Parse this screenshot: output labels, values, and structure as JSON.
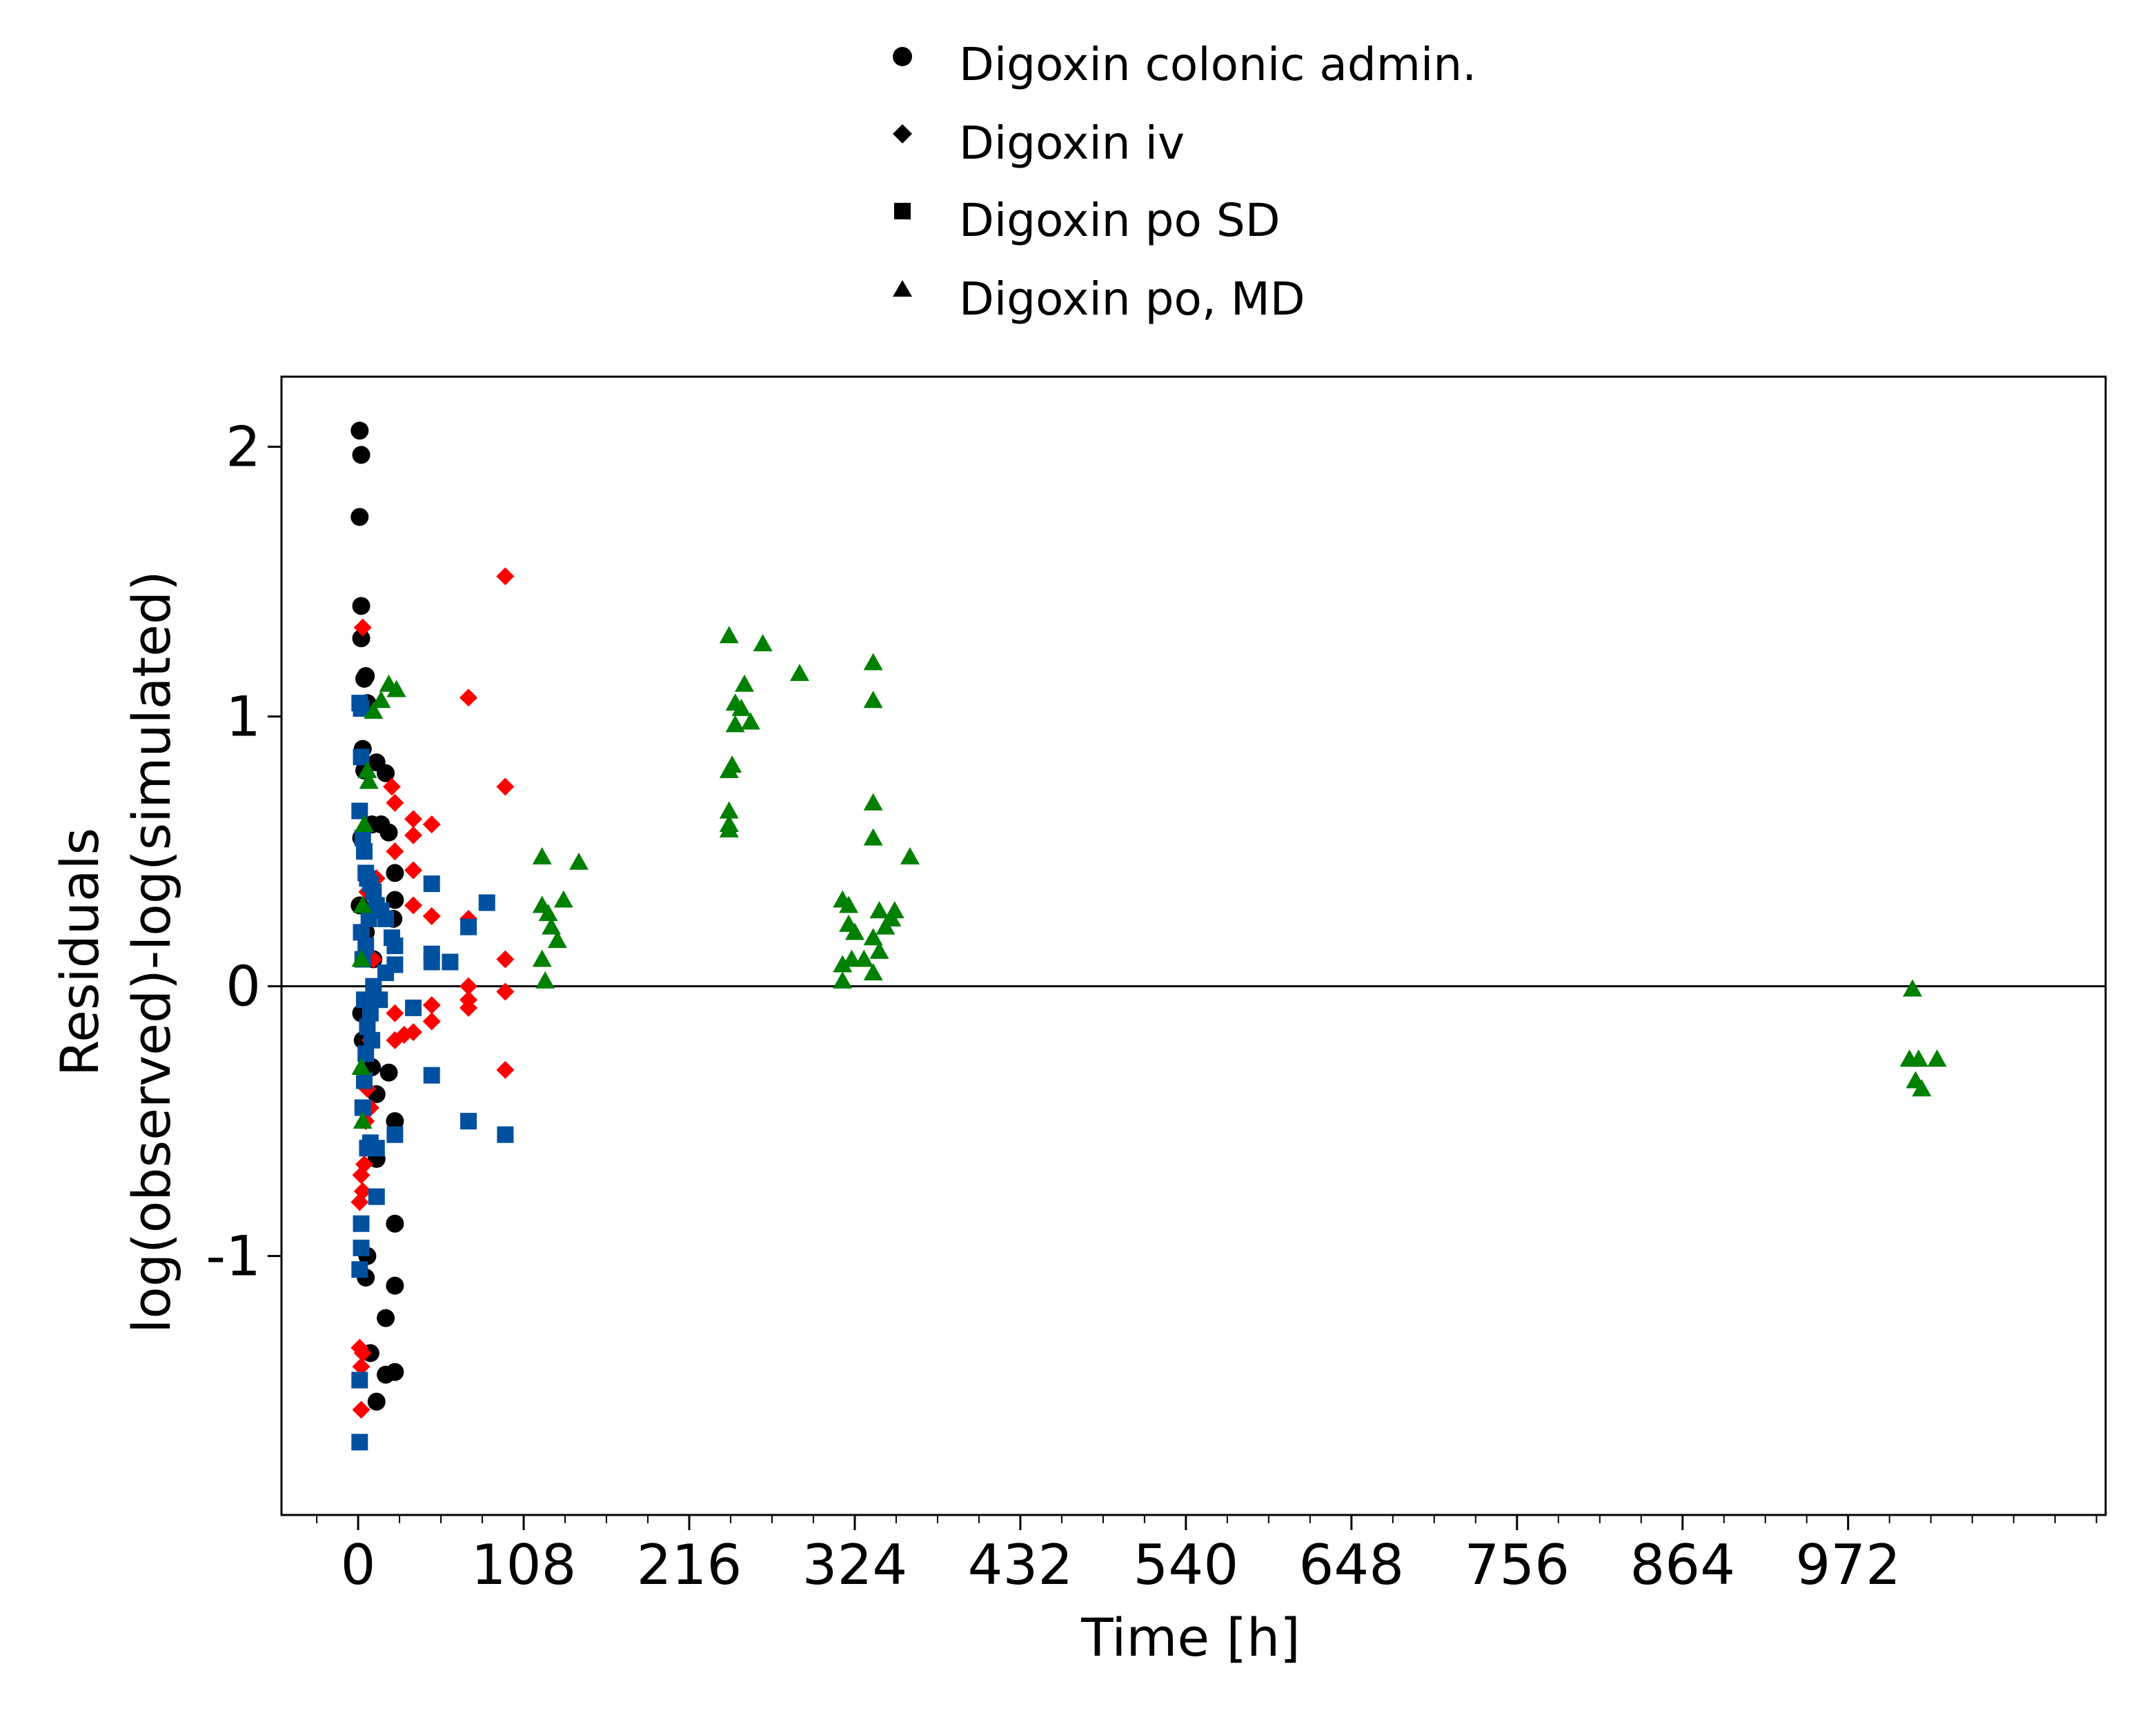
{
  "chart_data": {
    "type": "scatter",
    "title": "",
    "xlabel": "Time [h]",
    "ylabel_line1": "Residuals",
    "ylabel_line2": "log(observed)-log(simulated)",
    "xlim": [
      -50,
      1140
    ],
    "ylim": [
      -1.96,
      2.26
    ],
    "x_ticks": [
      0,
      108,
      216,
      324,
      432,
      540,
      648,
      756,
      864,
      972
    ],
    "x_tick_labels": [
      "0",
      "108",
      "216",
      "324",
      "432",
      "540",
      "648",
      "756",
      "864",
      "972"
    ],
    "y_ticks": [
      -1,
      0,
      1,
      2
    ],
    "y_tick_labels": [
      "-1",
      "0",
      "1",
      "2"
    ],
    "reference_line_y": 0,
    "grid": false,
    "legend_position": "top-center",
    "legend": [
      {
        "label": "Digoxin colonic admin.",
        "marker": "circle"
      },
      {
        "label": "Digoxin iv",
        "marker": "diamond"
      },
      {
        "label": "Digoxin po SD",
        "marker": "square"
      },
      {
        "label": "Digoxin po, MD",
        "marker": "triangle"
      }
    ],
    "series": [
      {
        "marker": "circle",
        "color": "#000000",
        "points": [
          [
            1,
            2.06
          ],
          [
            2,
            1.97
          ],
          [
            1,
            1.74
          ],
          [
            2,
            1.41
          ],
          [
            2,
            1.29
          ],
          [
            5,
            1.15
          ],
          [
            4,
            1.14
          ],
          [
            6,
            1.05
          ],
          [
            3,
            0.88
          ],
          [
            12,
            0.83
          ],
          [
            18,
            0.79
          ],
          [
            4,
            0.8
          ],
          [
            9,
            0.6
          ],
          [
            15,
            0.6
          ],
          [
            20,
            0.57
          ],
          [
            24,
            0.42
          ],
          [
            24,
            0.32
          ],
          [
            23,
            0.25
          ],
          [
            2,
            0.55
          ],
          [
            5,
            0.2
          ],
          [
            10,
            0.1
          ],
          [
            20,
            -0.32
          ],
          [
            24,
            -0.5
          ],
          [
            9,
            -0.3
          ],
          [
            12,
            -0.4
          ],
          [
            6,
            -1.0
          ],
          [
            5,
            -1.08
          ],
          [
            12,
            -0.64
          ],
          [
            24,
            -0.88
          ],
          [
            24,
            -1.11
          ],
          [
            18,
            -1.23
          ],
          [
            8,
            -1.36
          ],
          [
            12,
            -1.54
          ],
          [
            18,
            -1.44
          ],
          [
            24,
            -1.43
          ],
          [
            3,
            -0.2
          ],
          [
            1,
            0.3
          ],
          [
            2,
            -0.1
          ]
        ]
      },
      {
        "marker": "diamond",
        "color": "#ff0000",
        "points": [
          [
            96,
            1.52
          ],
          [
            72,
            1.07
          ],
          [
            96,
            0.74
          ],
          [
            3,
            1.33
          ],
          [
            22,
            0.74
          ],
          [
            24,
            0.68
          ],
          [
            36,
            0.62
          ],
          [
            48,
            0.6
          ],
          [
            36,
            0.56
          ],
          [
            24,
            0.5
          ],
          [
            72,
            0.25
          ],
          [
            48,
            0.26
          ],
          [
            36,
            0.3
          ],
          [
            36,
            0.43
          ],
          [
            96,
            0.1
          ],
          [
            72,
            0.0
          ],
          [
            96,
            -0.02
          ],
          [
            72,
            -0.05
          ],
          [
            48,
            -0.07
          ],
          [
            48,
            -0.13
          ],
          [
            36,
            -0.17
          ],
          [
            30,
            -0.18
          ],
          [
            24,
            -0.2
          ],
          [
            24,
            -0.1
          ],
          [
            96,
            -0.31
          ],
          [
            72,
            -0.08
          ],
          [
            2,
            -0.7
          ],
          [
            3,
            -0.76
          ],
          [
            1,
            -0.8
          ],
          [
            4,
            -0.66
          ],
          [
            5,
            -0.5
          ],
          [
            8,
            -0.45
          ],
          [
            1,
            -1.34
          ],
          [
            3,
            -1.36
          ],
          [
            2,
            -1.57
          ],
          [
            2,
            -1.41
          ],
          [
            6,
            -0.38
          ],
          [
            8,
            -0.2
          ],
          [
            10,
            0.1
          ],
          [
            6,
            0.35
          ],
          [
            12,
            0.4
          ]
        ]
      },
      {
        "marker": "square",
        "color": "#0050a0",
        "points": [
          [
            1,
            1.05
          ],
          [
            2,
            1.03
          ],
          [
            2,
            0.85
          ],
          [
            1,
            0.65
          ],
          [
            3,
            0.55
          ],
          [
            4,
            0.5
          ],
          [
            5,
            0.42
          ],
          [
            6,
            0.4
          ],
          [
            8,
            0.38
          ],
          [
            10,
            0.35
          ],
          [
            12,
            0.3
          ],
          [
            15,
            0.28
          ],
          [
            18,
            0.25
          ],
          [
            22,
            0.18
          ],
          [
            24,
            0.15
          ],
          [
            24,
            0.08
          ],
          [
            48,
            0.38
          ],
          [
            48,
            0.12
          ],
          [
            48,
            0.09
          ],
          [
            60,
            0.09
          ],
          [
            72,
            0.22
          ],
          [
            84,
            0.31
          ],
          [
            36,
            -0.08
          ],
          [
            48,
            -0.33
          ],
          [
            72,
            -0.5
          ],
          [
            96,
            -0.55
          ],
          [
            24,
            -0.55
          ],
          [
            12,
            -0.6
          ],
          [
            8,
            -0.58
          ],
          [
            6,
            -0.6
          ],
          [
            12,
            -0.78
          ],
          [
            2,
            -0.88
          ],
          [
            2,
            -0.97
          ],
          [
            1,
            -1.05
          ],
          [
            1,
            -1.46
          ],
          [
            1,
            -1.69
          ],
          [
            3,
            -0.45
          ],
          [
            4,
            -0.35
          ],
          [
            5,
            -0.25
          ],
          [
            6,
            -0.15
          ],
          [
            8,
            -0.1
          ],
          [
            10,
            0.0
          ],
          [
            14,
            -0.05
          ],
          [
            18,
            0.05
          ],
          [
            2,
            0.2
          ],
          [
            3,
            0.1
          ],
          [
            4,
            -0.05
          ],
          [
            5,
            0.15
          ],
          [
            7,
            0.25
          ],
          [
            9,
            -0.2
          ]
        ]
      },
      {
        "marker": "triangle",
        "color": "#008000",
        "points": [
          [
            20,
            1.12
          ],
          [
            25,
            1.1
          ],
          [
            15,
            1.06
          ],
          [
            10,
            1.02
          ],
          [
            6,
            0.8
          ],
          [
            7,
            0.76
          ],
          [
            4,
            0.6
          ],
          [
            3,
            0.3
          ],
          [
            2,
            0.1
          ],
          [
            2,
            -0.3
          ],
          [
            3,
            -0.5
          ],
          [
            120,
            0.48
          ],
          [
            144,
            0.46
          ],
          [
            120,
            0.3
          ],
          [
            124,
            0.27
          ],
          [
            126,
            0.22
          ],
          [
            130,
            0.17
          ],
          [
            134,
            0.32
          ],
          [
            120,
            0.1
          ],
          [
            122,
            0.02
          ],
          [
            242,
            1.3
          ],
          [
            264,
            1.27
          ],
          [
            288,
            1.16
          ],
          [
            252,
            1.12
          ],
          [
            246,
            1.05
          ],
          [
            250,
            1.03
          ],
          [
            256,
            0.98
          ],
          [
            246,
            0.97
          ],
          [
            244,
            0.82
          ],
          [
            242,
            0.8
          ],
          [
            242,
            0.65
          ],
          [
            242,
            0.6
          ],
          [
            242,
            0.58
          ],
          [
            336,
            1.2
          ],
          [
            336,
            1.06
          ],
          [
            336,
            0.68
          ],
          [
            336,
            0.55
          ],
          [
            360,
            0.48
          ],
          [
            316,
            0.32
          ],
          [
            320,
            0.3
          ],
          [
            324,
            0.2
          ],
          [
            320,
            0.23
          ],
          [
            340,
            0.28
          ],
          [
            348,
            0.25
          ],
          [
            350,
            0.28
          ],
          [
            344,
            0.22
          ],
          [
            336,
            0.18
          ],
          [
            340,
            0.13
          ],
          [
            322,
            0.1
          ],
          [
            330,
            0.1
          ],
          [
            316,
            0.08
          ],
          [
            336,
            0.05
          ],
          [
            316,
            0.02
          ],
          [
            1014,
            -0.01
          ],
          [
            1012,
            -0.27
          ],
          [
            1018,
            -0.27
          ],
          [
            1030,
            -0.27
          ],
          [
            1016,
            -0.35
          ],
          [
            1020,
            -0.38
          ]
        ]
      }
    ]
  }
}
